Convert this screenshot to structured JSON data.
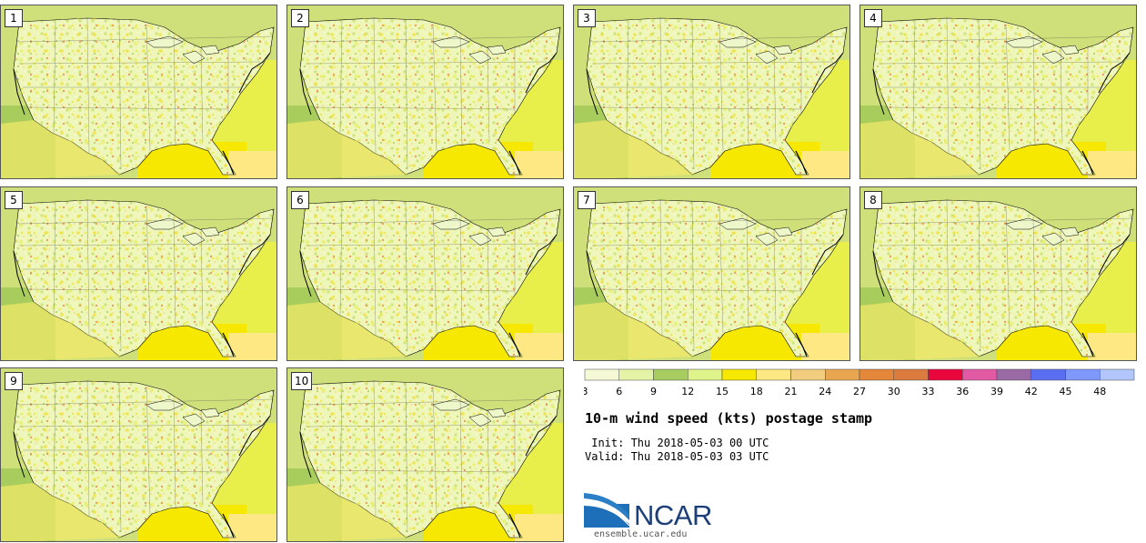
{
  "stamps": [
    {
      "label": "1"
    },
    {
      "label": "2"
    },
    {
      "label": "3"
    },
    {
      "label": "4"
    },
    {
      "label": "5"
    },
    {
      "label": "6"
    },
    {
      "label": "7"
    },
    {
      "label": "8"
    },
    {
      "label": "9"
    },
    {
      "label": "10"
    }
  ],
  "legend": {
    "ticks": [
      "3",
      "6",
      "9",
      "12",
      "15",
      "18",
      "21",
      "24",
      "27",
      "30",
      "33",
      "36",
      "39",
      "42",
      "45",
      "48"
    ],
    "colors": [
      "#f6f9d6",
      "#e4f3a5",
      "#a7cd61",
      "#def48a",
      "#f6e800",
      "#fde883",
      "#f3cd7f",
      "#e8a650",
      "#e4873a",
      "#db7b3e",
      "#e8063c",
      "#e25aa3",
      "#9a6aa4",
      "#5a6ef2",
      "#7e98fc",
      "#b2c6fc"
    ]
  },
  "title": "10-m wind speed (kts) postage stamp",
  "init_text": " Init: Thu 2018-05-03 00 UTC",
  "valid_text": "Valid: Thu 2018-05-03 03 UTC",
  "logo": {
    "text": "NCAR",
    "url": "ensemble.ucar.edu"
  }
}
